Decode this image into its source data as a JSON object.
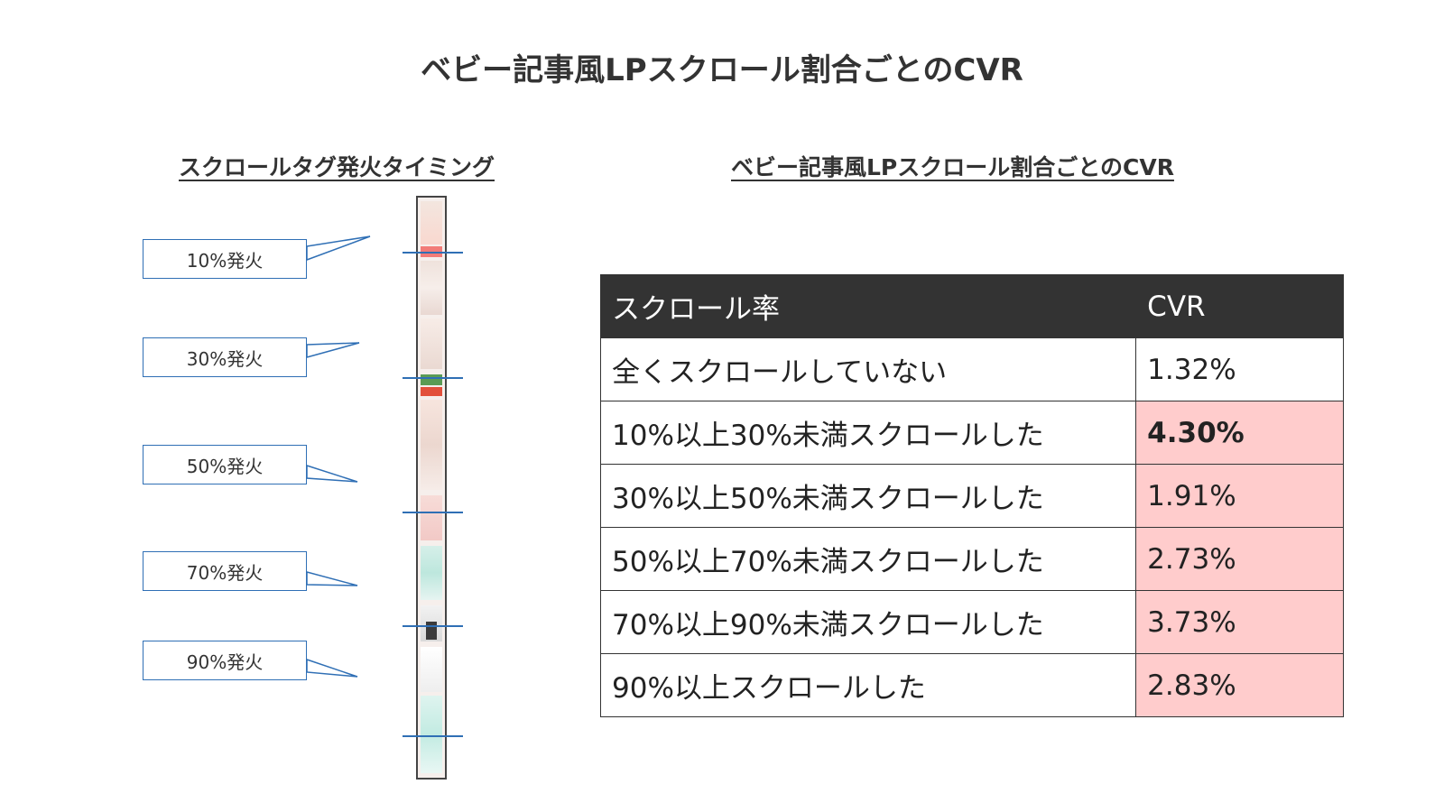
{
  "title": "ベビー記事風LPスクロール割合ごとのCVR",
  "left_panel": {
    "title": "スクロールタグ発火タイミング",
    "callouts": [
      "10%発火",
      "30%発火",
      "50%発火",
      "70%発火",
      "90%発火"
    ]
  },
  "right_panel": {
    "title": "ベビー記事風LPスクロール割合ごとのCVR"
  },
  "table": {
    "headers": [
      "スクロール率",
      "CVR"
    ],
    "rows": [
      {
        "label": "全くスクロールしていない",
        "cvr": "1.32%"
      },
      {
        "label": "10%以上30%未満スクロールした",
        "cvr": "4.30%"
      },
      {
        "label": "30%以上50%未満スクロールした",
        "cvr": "1.91%"
      },
      {
        "label": "50%以上70%未満スクロールした",
        "cvr": "2.73%"
      },
      {
        "label": "70%以上90%未満スクロールした",
        "cvr": "3.73%"
      },
      {
        "label": "90%以上スクロールした",
        "cvr": "2.83%"
      }
    ]
  },
  "colors": {
    "highlight": "#ffcccc",
    "header_bg": "#333333",
    "marker": "#2f6fb5"
  }
}
